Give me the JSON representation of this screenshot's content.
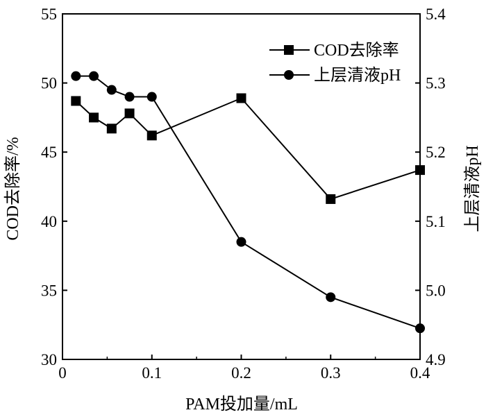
{
  "chart_data": {
    "type": "line",
    "title": "",
    "xlabel": "PAM投加量/mL",
    "ylabel_left": "COD去除率/%",
    "ylabel_right": "上层清液pH",
    "xlim": [
      0,
      0.4
    ],
    "ylim_left": [
      30,
      55
    ],
    "ylim_right": [
      4.9,
      5.4
    ],
    "x_ticks": [
      "0",
      "0.1",
      "0.2",
      "0.3",
      "0.4"
    ],
    "y_left_ticks": [
      "30",
      "35",
      "40",
      "45",
      "50",
      "55"
    ],
    "y_right_ticks": [
      "4.9",
      "5.0",
      "5.1",
      "5.2",
      "5.3",
      "5.4"
    ],
    "grid": false,
    "legend_position": "top-right",
    "series": [
      {
        "name": "COD去除率",
        "axis": "left",
        "marker": "square",
        "x": [
          0.015,
          0.035,
          0.055,
          0.075,
          0.1,
          0.2,
          0.3,
          0.4
        ],
        "y": [
          48.7,
          47.5,
          46.7,
          47.8,
          46.2,
          48.9,
          41.6,
          43.7
        ]
      },
      {
        "name": "上层清液pH",
        "axis": "right",
        "marker": "circle",
        "x": [
          0.015,
          0.035,
          0.055,
          0.075,
          0.1,
          0.2,
          0.3,
          0.4
        ],
        "y": [
          5.31,
          5.31,
          5.29,
          5.28,
          5.28,
          5.07,
          4.99,
          4.945
        ]
      }
    ]
  }
}
